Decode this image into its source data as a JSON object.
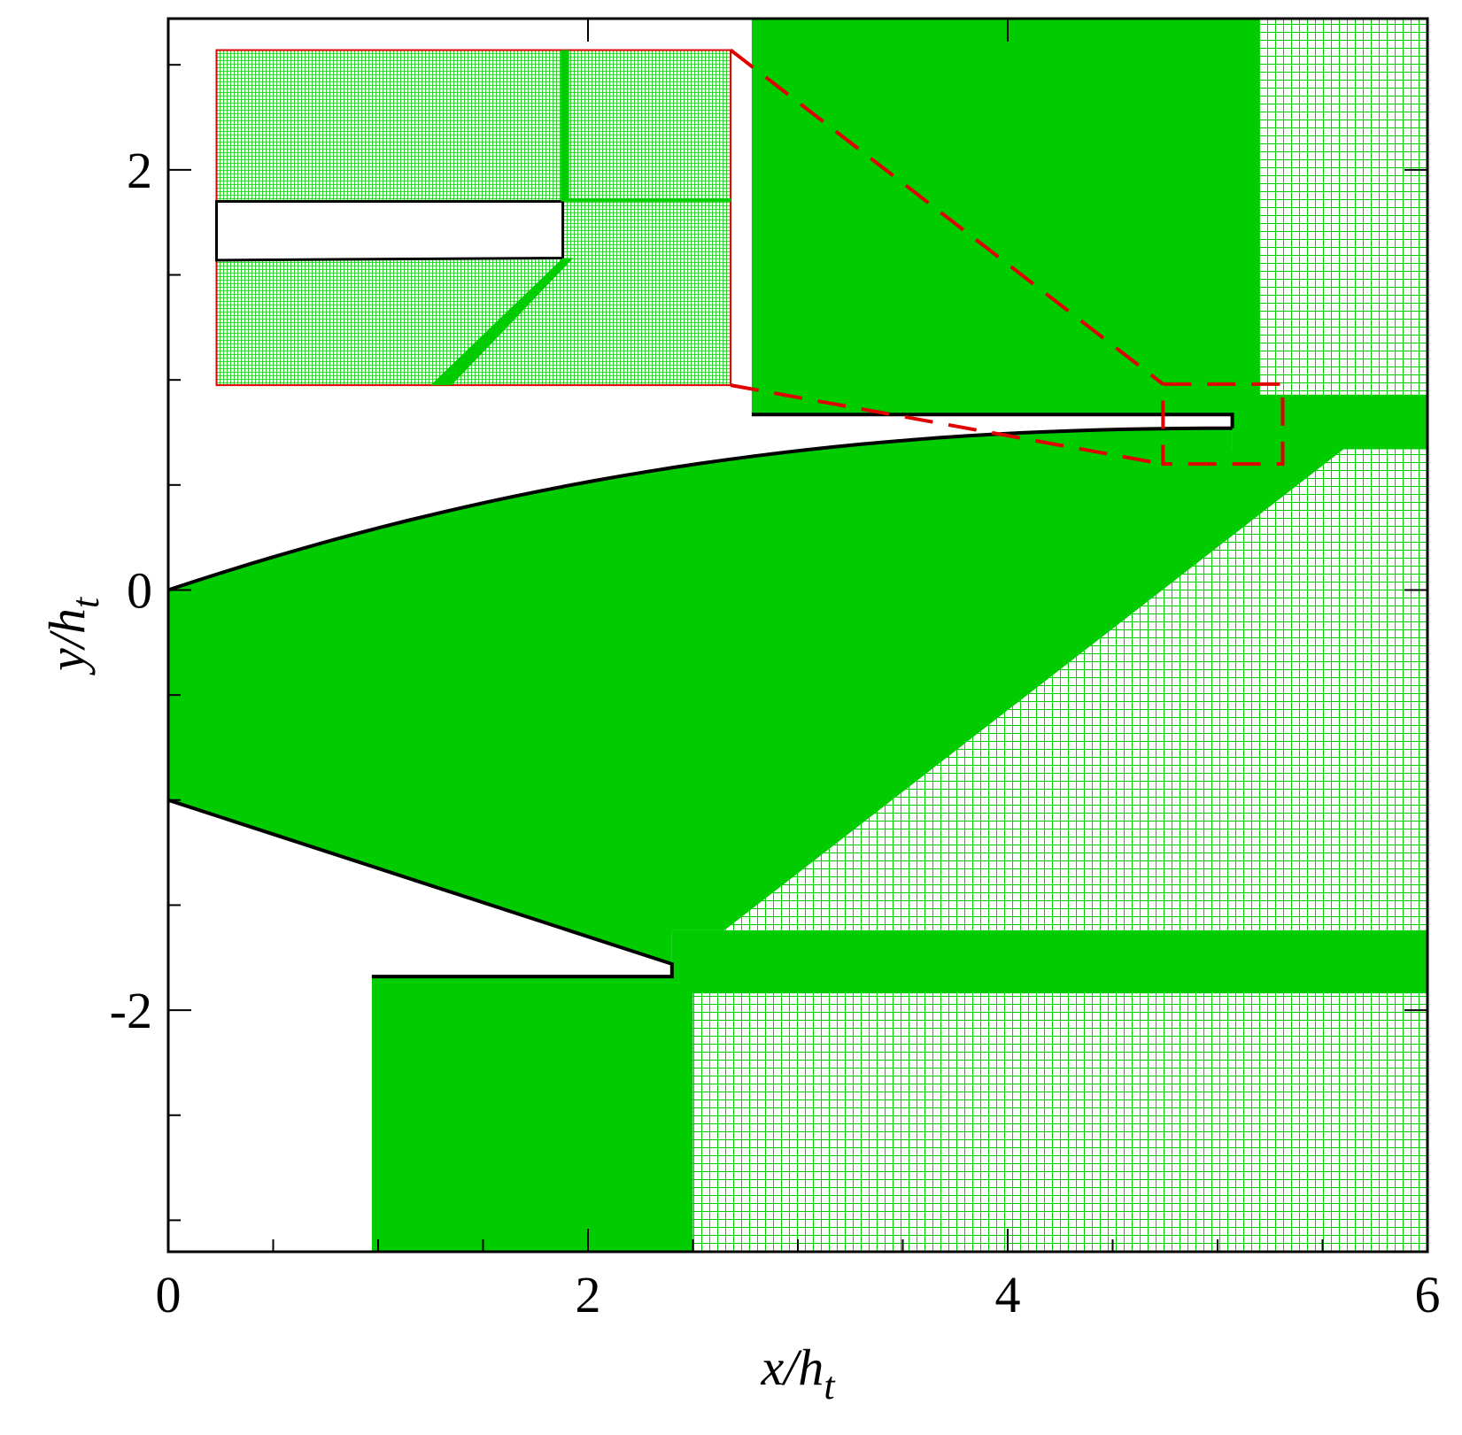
{
  "chart_data": {
    "type": "mesh",
    "xlabel": "x/h",
    "xlabel_sub": "t",
    "ylabel": "y/h",
    "ylabel_sub": "t",
    "xlim": [
      0,
      6
    ],
    "ylim": [
      -3.15,
      2.72
    ],
    "xticks": [
      0,
      2,
      4,
      6
    ],
    "yticks": [
      -2,
      0,
      2
    ],
    "xminorticks": [
      0.5,
      1,
      1.5,
      2.5,
      3,
      3.5,
      4.5,
      5,
      5.5
    ],
    "yminorticks": [
      -3,
      -2.5,
      -1.5,
      -1,
      -0.5,
      0.5,
      1,
      1.5,
      2.5
    ],
    "mesh_color": "#00cc00",
    "inset_color": "#e00000"
  }
}
